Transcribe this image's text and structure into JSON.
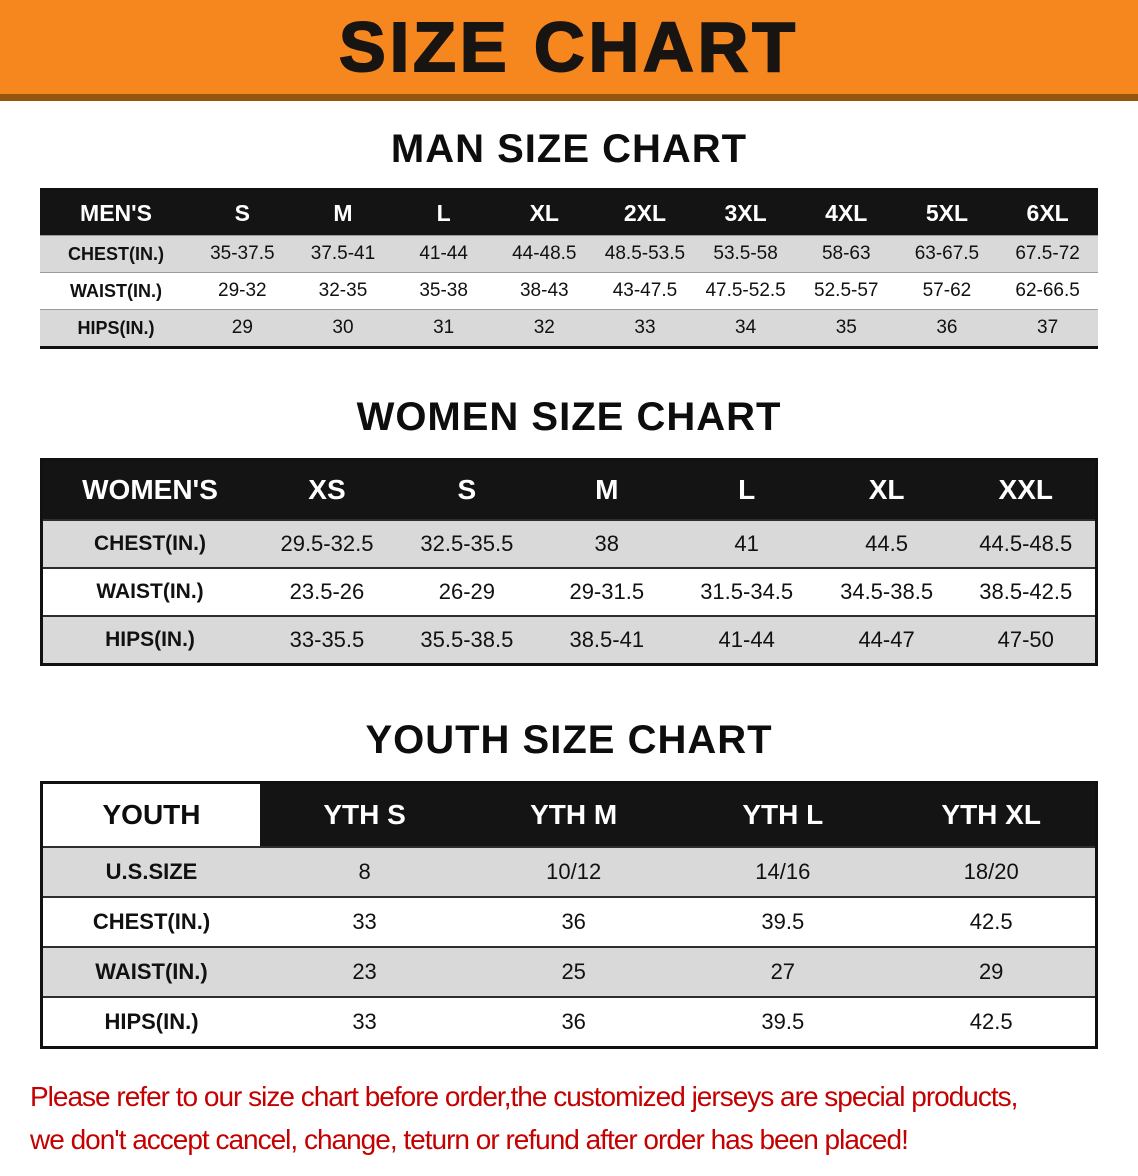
{
  "banner": {
    "title": "SIZE CHART",
    "bg_color": "#f6871f"
  },
  "sections": [
    {
      "heading": "MAN SIZE CHART",
      "table": {
        "name": "mens",
        "header": [
          "MEN'S",
          "S",
          "M",
          "L",
          "XL",
          "2XL",
          "3XL",
          "4XL",
          "5XL",
          "6XL"
        ],
        "rows": [
          [
            "CHEST(IN.)",
            "35-37.5",
            "37.5-41",
            "41-44",
            "44-48.5",
            "48.5-53.5",
            "53.5-58",
            "58-63",
            "63-67.5",
            "67.5-72"
          ],
          [
            "WAIST(IN.)",
            "29-32",
            "32-35",
            "35-38",
            "38-43",
            "43-47.5",
            "47.5-52.5",
            "52.5-57",
            "57-62",
            "62-66.5"
          ],
          [
            "HIPS(IN.)",
            "29",
            "30",
            "31",
            "32",
            "33",
            "34",
            "35",
            "36",
            "37"
          ]
        ]
      }
    },
    {
      "heading": "WOMEN SIZE CHART",
      "table": {
        "name": "womens",
        "header": [
          "WOMEN'S",
          "XS",
          "S",
          "M",
          "L",
          "XL",
          "XXL"
        ],
        "rows": [
          [
            "CHEST(IN.)",
            "29.5-32.5",
            "32.5-35.5",
            "38",
            "41",
            "44.5",
            "44.5-48.5"
          ],
          [
            "WAIST(IN.)",
            "23.5-26",
            "26-29",
            "29-31.5",
            "31.5-34.5",
            "34.5-38.5",
            "38.5-42.5"
          ],
          [
            "HIPS(IN.)",
            "33-35.5",
            "35.5-38.5",
            "38.5-41",
            "41-44",
            "44-47",
            "47-50"
          ]
        ]
      }
    },
    {
      "heading": "YOUTH SIZE CHART",
      "table": {
        "name": "youth",
        "header": [
          "YOUTH",
          "YTH S",
          "YTH M",
          "YTH L",
          "YTH XL"
        ],
        "rows": [
          [
            "U.S.SIZE",
            "8",
            "10/12",
            "14/16",
            "18/20"
          ],
          [
            "CHEST(IN.)",
            "33",
            "36",
            "39.5",
            "42.5"
          ],
          [
            "WAIST(IN.)",
            "23",
            "25",
            "27",
            "29"
          ],
          [
            "HIPS(IN.)",
            "33",
            "36",
            "39.5",
            "42.5"
          ]
        ]
      }
    }
  ],
  "disclaimer": {
    "line1": "Please refer to our size chart before order,the customized jerseys are special products,",
    "line2": "we don't accept cancel, change, teturn or refund after order has been placed!",
    "color": "#c40000"
  }
}
